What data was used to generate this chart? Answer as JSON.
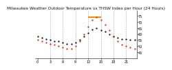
{
  "title": "Milwaukee Weather Outdoor Temperature vs THSW Index per Hour (24 Hours)",
  "hours": [
    0,
    1,
    2,
    3,
    4,
    5,
    6,
    7,
    8,
    9,
    10,
    11,
    12,
    13,
    14,
    15,
    16,
    17,
    18,
    19,
    20,
    21,
    22,
    23
  ],
  "temp": [
    58,
    57,
    56,
    55,
    54,
    54,
    53,
    52,
    52,
    53,
    55,
    58,
    61,
    64,
    65,
    63,
    62,
    60,
    58,
    57,
    56,
    56,
    55,
    55
  ],
  "thsw": [
    55,
    54,
    53,
    52,
    51,
    50,
    49,
    48,
    48,
    50,
    54,
    60,
    66,
    72,
    74,
    72,
    68,
    63,
    58,
    54,
    51,
    50,
    49,
    48
  ],
  "temp_color": "#000000",
  "thsw_dot_color": "#cc2200",
  "thsw_line_color": "#ff8800",
  "thsw_line_start_x": 12,
  "thsw_line_end_x": 15,
  "thsw_line_y": 74,
  "ylim_min": 40,
  "ylim_max": 80,
  "yticks": [
    45,
    50,
    55,
    60,
    65,
    70,
    75
  ],
  "background_color": "#ffffff",
  "grid_color": "#aaaaaa",
  "title_fontsize": 4.2,
  "xlabel_fontsize": 3.5,
  "ylabel_fontsize": 3.5,
  "dashed_grid_x": [
    3,
    6,
    9,
    12,
    15,
    18,
    21
  ],
  "xtick_positions": [
    0,
    3,
    6,
    9,
    12,
    15,
    18,
    21
  ],
  "xtick_labels": [
    "0",
    "3",
    "6",
    "9",
    "12",
    "15",
    "18",
    "21"
  ],
  "marker_size": 1.2,
  "orange_linewidth": 1.5
}
